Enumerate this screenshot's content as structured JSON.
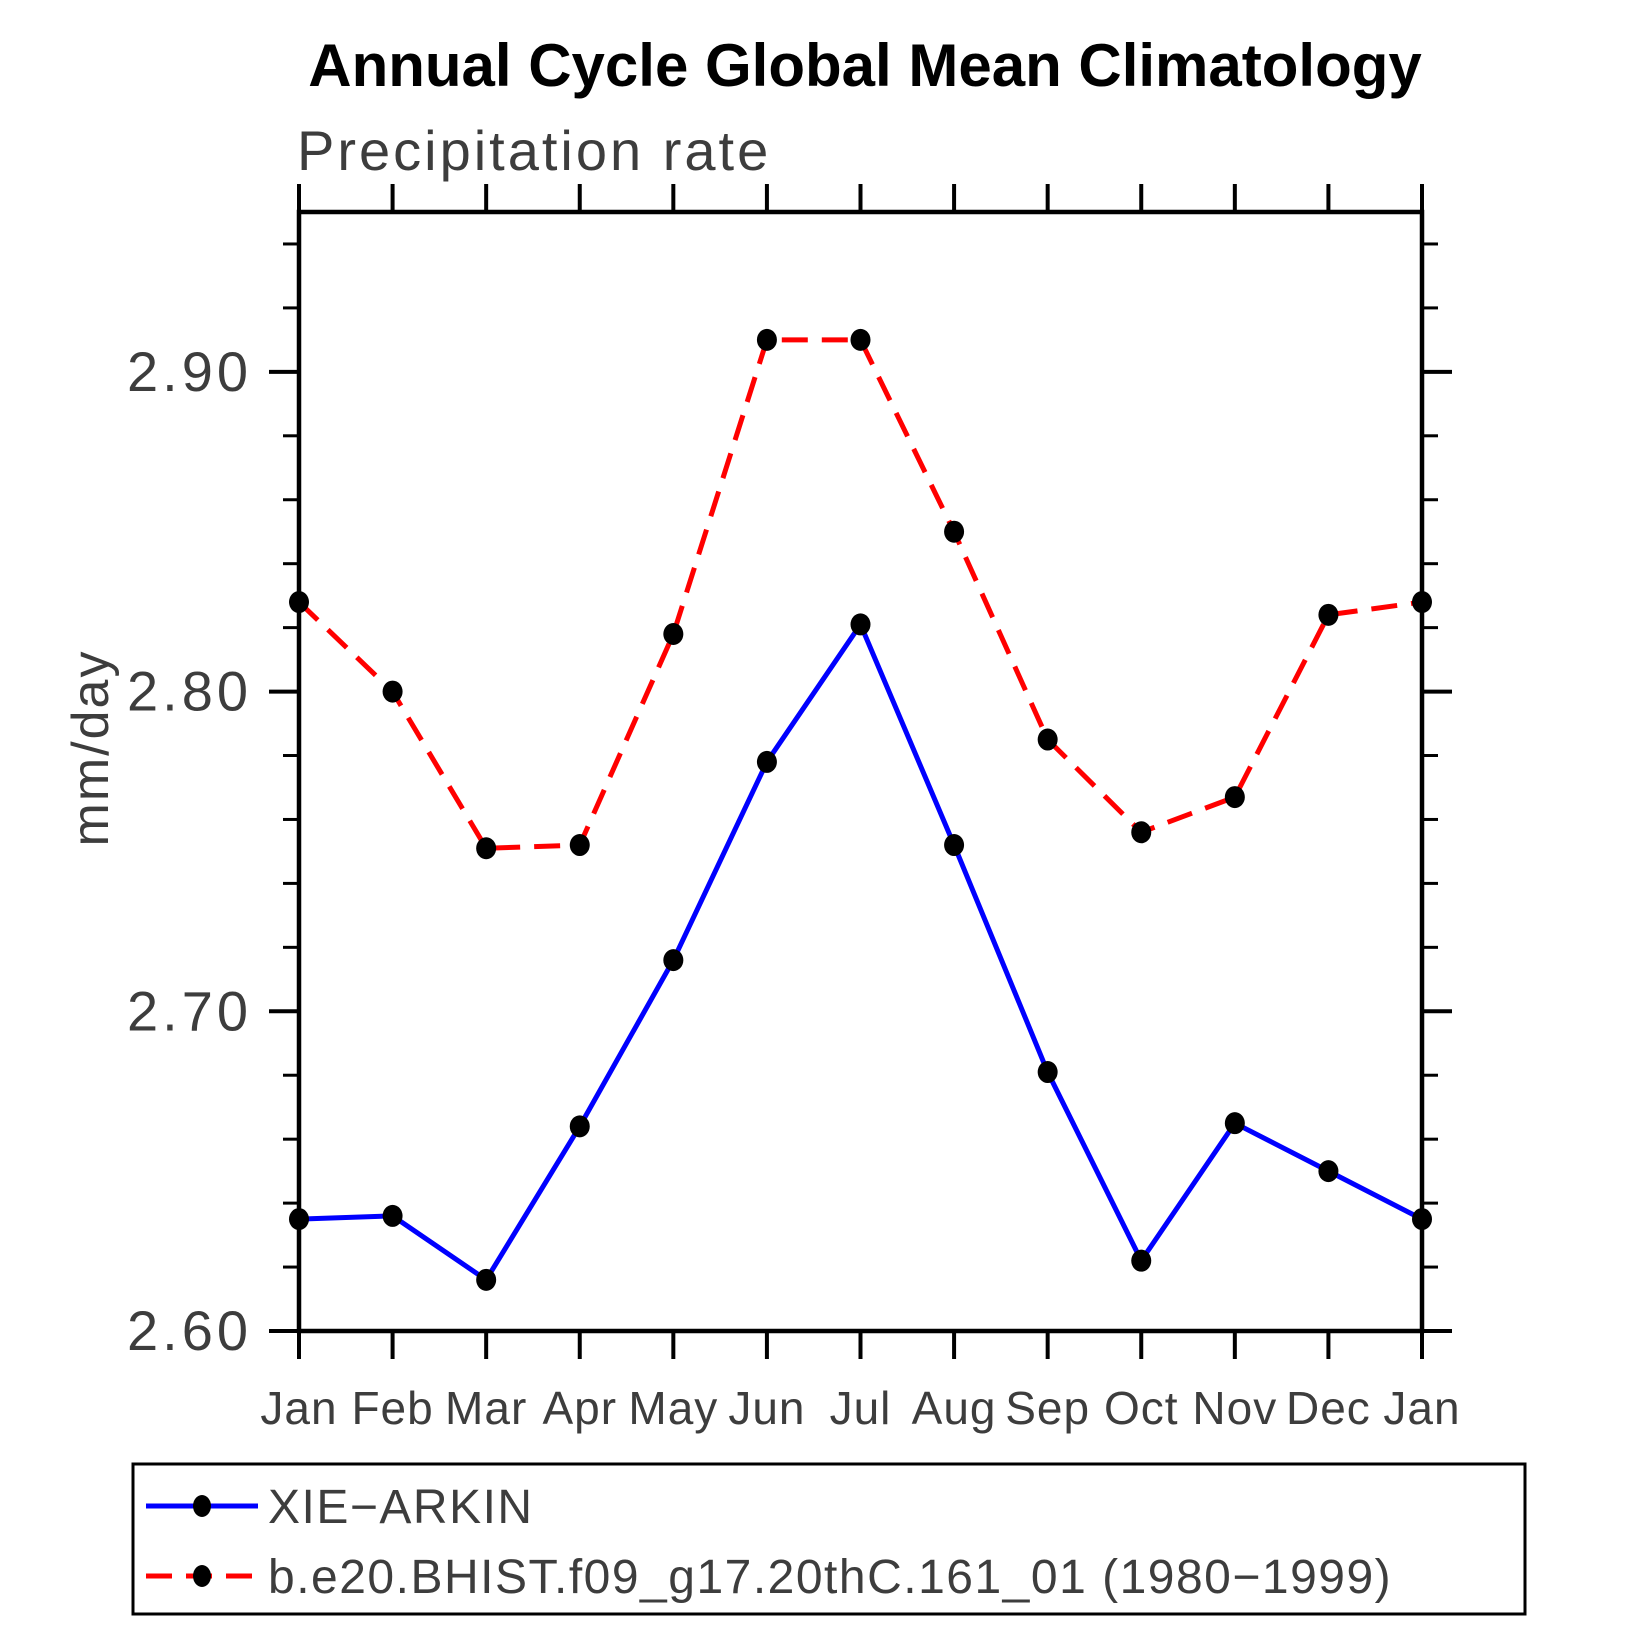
{
  "chart_data": {
    "type": "line",
    "title": "Annual Cycle Global Mean Climatology",
    "subtitle": "Precipitation rate",
    "ylabel": "mm/day",
    "xlabel": "",
    "categories": [
      "Jan",
      "Feb",
      "Mar",
      "Apr",
      "May",
      "Jun",
      "Jul",
      "Aug",
      "Sep",
      "Oct",
      "Nov",
      "Dec",
      "Jan"
    ],
    "ylim": [
      2.6,
      2.95
    ],
    "yticks_major": [
      2.6,
      2.7,
      2.8,
      2.9
    ],
    "ytick_labels": [
      "2.60",
      "2.70",
      "2.80",
      "2.90"
    ],
    "minor_tick_step": 0.02,
    "grid": false,
    "legend_position": "bottom-left-box",
    "frame_color": "#000000",
    "marker_color": "#000000",
    "series": [
      {
        "name": "XIE−ARKIN",
        "color": "#0000ff",
        "style": "solid",
        "marker": "filled-circle",
        "values": [
          2.635,
          2.636,
          2.616,
          2.664,
          2.716,
          2.778,
          2.821,
          2.752,
          2.681,
          2.622,
          2.665,
          2.65,
          2.635
        ]
      },
      {
        "name": "b.e20.BHIST.f09_g17.20thC.161_01 (1980−1999)",
        "color": "#ff0000",
        "style": "dashed",
        "marker": "filled-circle",
        "values": [
          2.828,
          2.8,
          2.751,
          2.752,
          2.818,
          2.91,
          2.91,
          2.85,
          2.785,
          2.756,
          2.767,
          2.824,
          2.828
        ]
      }
    ]
  }
}
